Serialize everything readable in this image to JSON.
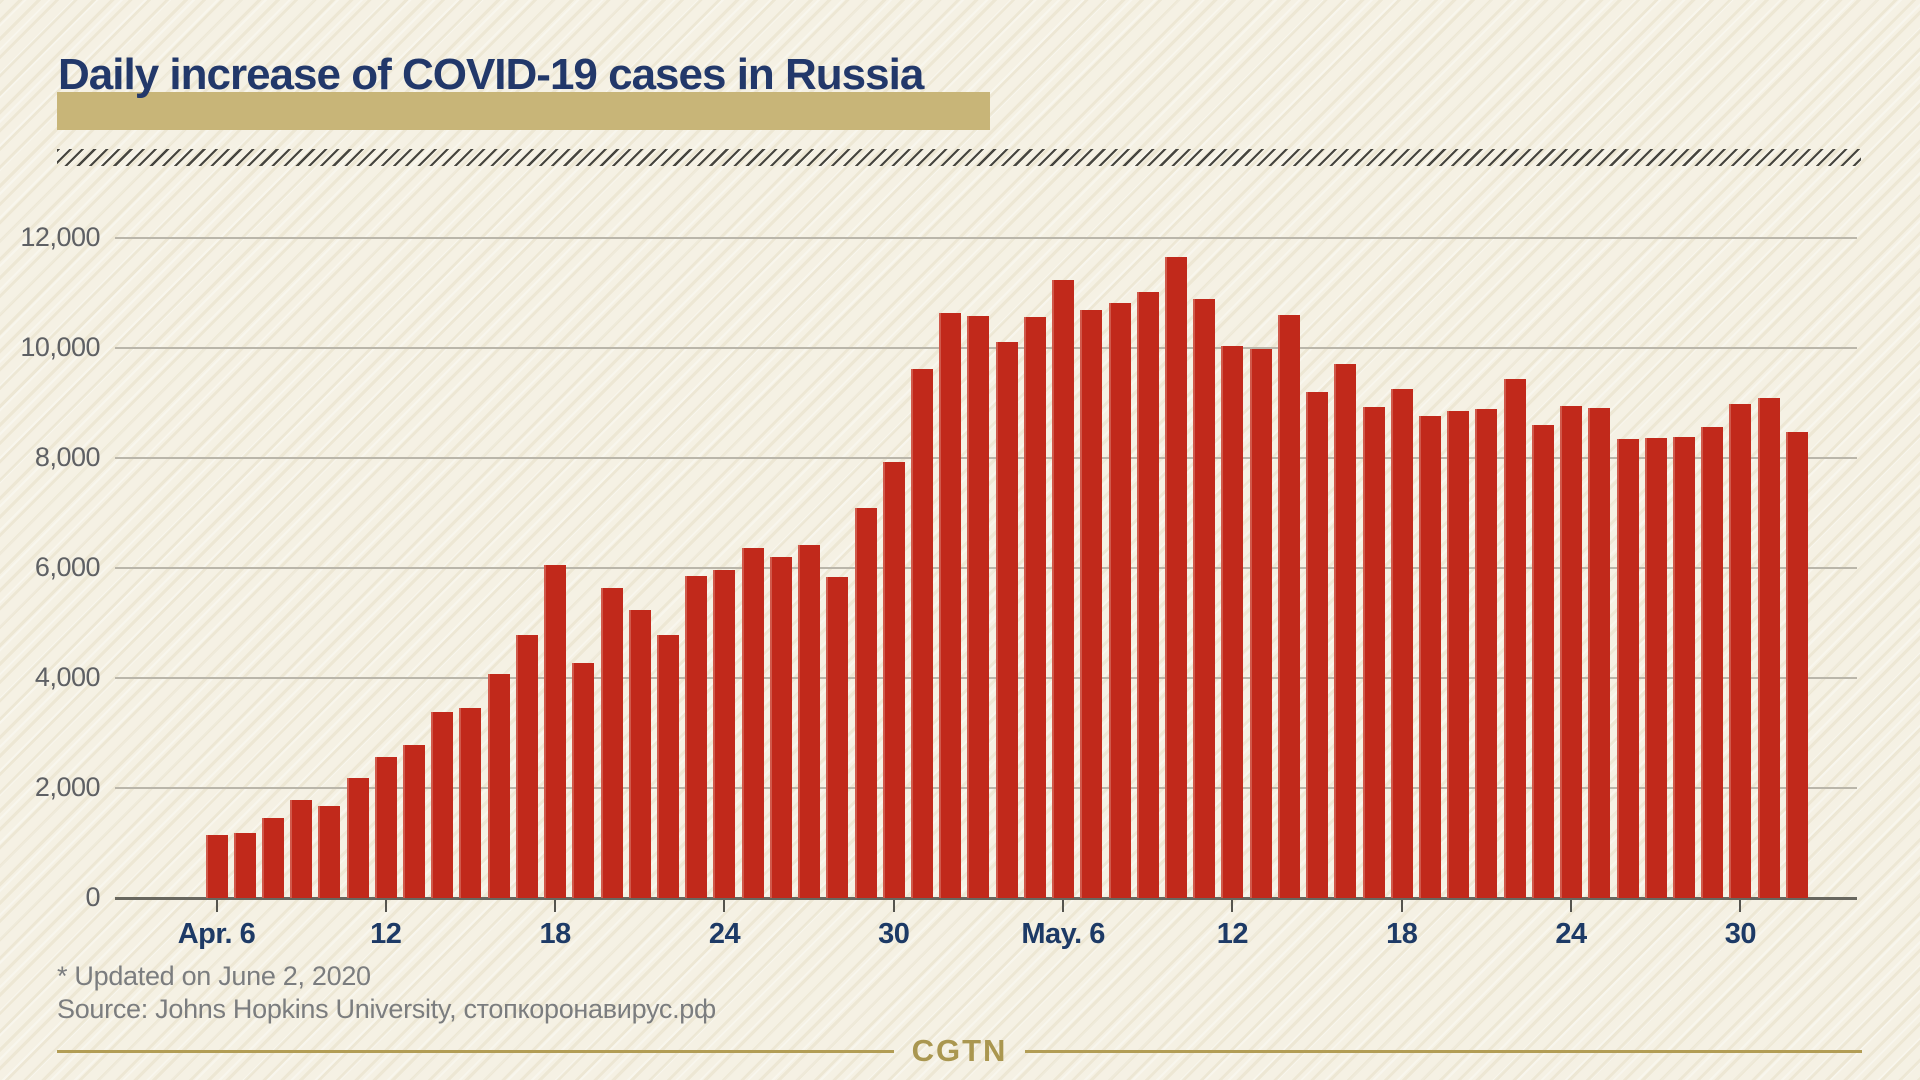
{
  "header": {
    "title": "Daily increase of COVID-19 cases in Russia"
  },
  "footer": {
    "updated_note": "* Updated on June 2, 2020",
    "source_note": "Source: Johns Hopkins University, стопкоронавирус.рф",
    "brand": "CGTN"
  },
  "colors": {
    "background": "#f5f1e4",
    "bar_red": "#c1291b",
    "title_navy": "#22386a",
    "highlight_tan": "#c8b578",
    "gridline_gray": "#bab6aa",
    "axis_gray": "#68675f",
    "y_label_gray": "#5e6064",
    "x_label_navy": "#1d3a66",
    "note_gray": "#7b7d7f",
    "brand_gold": "#aa9750"
  },
  "chart_data": {
    "type": "bar",
    "title": "Daily increase of COVID-19 cases in Russia",
    "xlabel": "",
    "ylabel": "",
    "ylim": [
      0,
      12000
    ],
    "ytick_step": 2000,
    "ytick_labels": [
      "0",
      "2,000",
      "4,000",
      "6,000",
      "8,000",
      "10,000",
      "12,000"
    ],
    "grid": true,
    "legend": false,
    "x": [
      "Apr 6",
      "Apr 7",
      "Apr 8",
      "Apr 9",
      "Apr 10",
      "Apr 11",
      "Apr 12",
      "Apr 13",
      "Apr 14",
      "Apr 15",
      "Apr 16",
      "Apr 17",
      "Apr 18",
      "Apr 19",
      "Apr 20",
      "Apr 21",
      "Apr 22",
      "Apr 23",
      "Apr 24",
      "Apr 25",
      "Apr 26",
      "Apr 27",
      "Apr 28",
      "Apr 29",
      "Apr 30",
      "May 1",
      "May 2",
      "May 3",
      "May 4",
      "May 5",
      "May 6",
      "May 7",
      "May 8",
      "May 9",
      "May 10",
      "May 11",
      "May 12",
      "May 13",
      "May 14",
      "May 15",
      "May 16",
      "May 17",
      "May 18",
      "May 19",
      "May 20",
      "May 21",
      "May 22",
      "May 23",
      "May 24",
      "May 25",
      "May 26",
      "May 27",
      "May 28",
      "May 29",
      "May 30",
      "May 31",
      "Jun 1"
    ],
    "values": [
      1154,
      1175,
      1459,
      1786,
      1667,
      2186,
      2558,
      2774,
      3388,
      3448,
      4070,
      4785,
      6060,
      4268,
      5642,
      5236,
      4774,
      5849,
      5966,
      6361,
      6198,
      6411,
      5841,
      7099,
      7933,
      9623,
      10633,
      10581,
      10102,
      10559,
      11231,
      10699,
      10817,
      11012,
      11656,
      10899,
      10028,
      9974,
      10598,
      9200,
      9709,
      8926,
      9263,
      8764,
      8849,
      8894,
      9434,
      8599,
      8946,
      8915,
      8338,
      8371,
      8390,
      8572,
      8980,
      9085,
      8480
    ],
    "xtick_indices": [
      0,
      6,
      12,
      18,
      24,
      30,
      36,
      42,
      48,
      54
    ],
    "xtick_labels": [
      "Apr. 6",
      "12",
      "18",
      "24",
      "30",
      "May. 6",
      "12",
      "18",
      "24",
      "30"
    ]
  }
}
